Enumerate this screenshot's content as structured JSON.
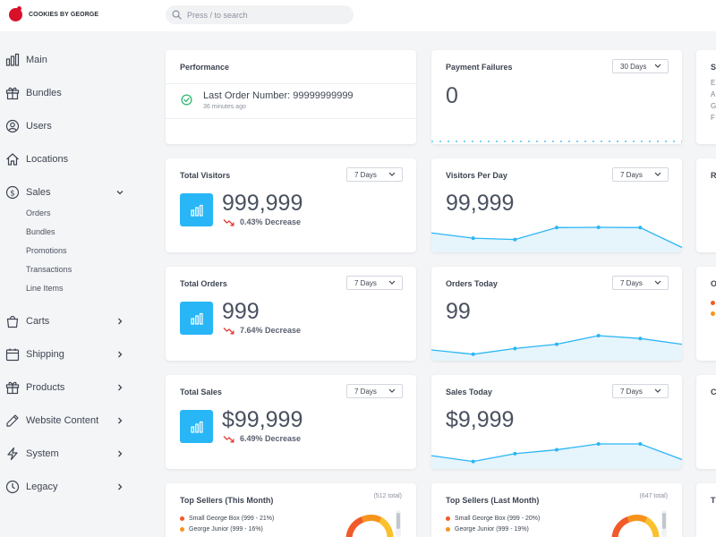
{
  "app": {
    "brand": "COOKIES BY GEORGE",
    "accent": "#29b6f6",
    "brand_color": "#d8102a"
  },
  "search": {
    "placeholder": "Press / to search"
  },
  "sidebar": {
    "items": [
      {
        "label": "Main",
        "icon": "bar-chart-icon"
      },
      {
        "label": "Bundles",
        "icon": "gift-icon"
      },
      {
        "label": "Users",
        "icon": "user-circle-icon"
      },
      {
        "label": "Locations",
        "icon": "home-icon"
      },
      {
        "label": "Sales",
        "icon": "dollar-circle-icon",
        "expanded": true,
        "children": [
          "Orders",
          "Bundles",
          "Promotions",
          "Transactions",
          "Line Items"
        ]
      },
      {
        "label": "Carts",
        "icon": "shopping-bag-icon"
      },
      {
        "label": "Shipping",
        "icon": "calendar-icon"
      },
      {
        "label": "Products",
        "icon": "gift-icon"
      },
      {
        "label": "Website Content",
        "icon": "pencil-icon"
      },
      {
        "label": "System",
        "icon": "lightning-icon"
      },
      {
        "label": "Legacy",
        "icon": "clock-icon"
      }
    ]
  },
  "performance": {
    "title": "Performance",
    "last_order_label": "Last Order Number: 99999999999",
    "last_order_time": "36 minutes ago",
    "status_color": "#2eb872"
  },
  "payment_failures": {
    "title": "Payment Failures",
    "period": "30 Days",
    "value": "0"
  },
  "total_visitors": {
    "title": "Total Visitors",
    "period": "7 Days",
    "value": "999,999",
    "trend": "0.43% Decrease"
  },
  "visitors_per_day": {
    "title": "Visitors Per Day",
    "period": "7 Days",
    "value": "99,999",
    "series": [
      12,
      8,
      7,
      16,
      16.2,
      16,
      1
    ]
  },
  "total_orders": {
    "title": "Total Orders",
    "period": "7 Days",
    "value": "999",
    "trend": "7.64% Decrease"
  },
  "orders_today": {
    "title": "Orders Today",
    "period": "7 Days",
    "value": "99",
    "series": [
      5,
      2,
      6,
      9,
      15,
      13,
      9
    ]
  },
  "total_sales": {
    "title": "Total Sales",
    "period": "7 Days",
    "value": "$99,999",
    "trend": "6.49% Decrease"
  },
  "sales_today": {
    "title": "Sales Today",
    "period": "7 Days",
    "value": "$9,999",
    "series": [
      5,
      2,
      6,
      8,
      11,
      11,
      3
    ]
  },
  "top_sellers_month": {
    "title": "Top Sellers (This Month)",
    "total": "(512 total)",
    "rows": [
      {
        "label": "Small George Box (999 - 21%)",
        "color": "#f15a29"
      },
      {
        "label": "George Junior (999 - 16%)",
        "color": "#f7941d"
      }
    ]
  },
  "top_sellers_last_month": {
    "title": "Top Sellers (Last Month)",
    "total": "(647 total)",
    "rows": [
      {
        "label": "Small George Box (999 - 20%)",
        "color": "#f15a29"
      },
      {
        "label": "George Junior (999 - 19%)",
        "color": "#f7941d"
      }
    ]
  },
  "partial_cards": {
    "col3_row1_title": "S",
    "col3_row1_lines": [
      "E",
      "A",
      "G",
      "F"
    ],
    "col3_row2_title": "R",
    "col3_row3_title": "O",
    "col3_row4_title": "C",
    "col3_row5_title": "T"
  }
}
